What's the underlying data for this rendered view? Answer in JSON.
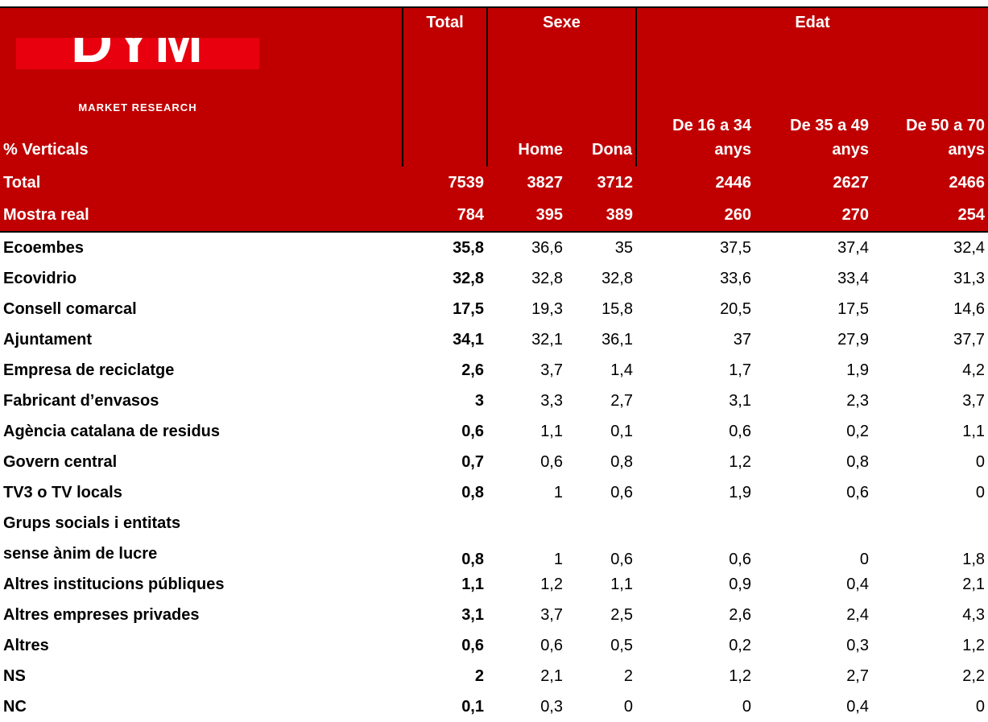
{
  "logo": {
    "brand": "DYM",
    "tagline": "MARKET RESEARCH"
  },
  "table": {
    "group_headers": [
      "Total",
      "Sexe",
      "Edat"
    ],
    "corner_label": "% Verticals",
    "column_headers": [
      "Home",
      "Dona",
      "De 16 a 34 anys",
      "De 35 a 49 anys",
      "De 50 a 70 anys"
    ],
    "summary_rows": [
      {
        "label": "Total",
        "values": [
          "7539",
          "3827",
          "3712",
          "2446",
          "2627",
          "2466"
        ]
      },
      {
        "label": "Mostra real",
        "values": [
          "784",
          "395",
          "389",
          "260",
          "270",
          "254"
        ]
      }
    ],
    "rows": [
      {
        "label": "Ecoembes",
        "values": [
          "35,8",
          "36,6",
          "35",
          "37,5",
          "37,4",
          "32,4"
        ]
      },
      {
        "label": "Ecovidrio",
        "values": [
          "32,8",
          "32,8",
          "32,8",
          "33,6",
          "33,4",
          "31,3"
        ]
      },
      {
        "label": "Consell comarcal",
        "values": [
          "17,5",
          "19,3",
          "15,8",
          "20,5",
          "17,5",
          "14,6"
        ]
      },
      {
        "label": "Ajuntament",
        "values": [
          "34,1",
          "32,1",
          "36,1",
          "37",
          "27,9",
          "37,7"
        ]
      },
      {
        "label": "Empresa de reciclatge",
        "values": [
          "2,6",
          "3,7",
          "1,4",
          "1,7",
          "1,9",
          "4,2"
        ]
      },
      {
        "label": "Fabricant d’envasos",
        "values": [
          "3",
          "3,3",
          "2,7",
          "3,1",
          "2,3",
          "3,7"
        ]
      },
      {
        "label": "Agència catalana de residus",
        "values": [
          "0,6",
          "1,1",
          "0,1",
          "0,6",
          "0,2",
          "1,1"
        ]
      },
      {
        "label": "Govern central",
        "values": [
          "0,7",
          "0,6",
          "0,8",
          "1,2",
          "0,8",
          "0"
        ]
      },
      {
        "label": "TV3 o TV locals",
        "values": [
          "0,8",
          "1",
          "0,6",
          "1,9",
          "0,6",
          "0"
        ]
      },
      {
        "label": "Grups socials i entitats\nsense ànim de lucre",
        "values": [
          "0,8",
          "1",
          "0,6",
          "0,6",
          "0",
          "1,8"
        ]
      },
      {
        "label": "Altres institucions públiques",
        "values": [
          "1,1",
          "1,2",
          "1,1",
          "0,9",
          "0,4",
          "2,1"
        ]
      },
      {
        "label": "Altres empreses privades",
        "values": [
          "3,1",
          "3,7",
          "2,5",
          "2,6",
          "2,4",
          "4,3"
        ]
      },
      {
        "label": "Altres",
        "values": [
          "0,6",
          "0,6",
          "0,5",
          "0,2",
          "0,3",
          "1,2"
        ]
      },
      {
        "label": "NS",
        "values": [
          "2",
          "2,1",
          "2",
          "1,2",
          "2,7",
          "2,2"
        ]
      },
      {
        "label": "NC",
        "values": [
          "0,1",
          "0,3",
          "0",
          "0",
          "0,4",
          "0"
        ]
      }
    ]
  }
}
